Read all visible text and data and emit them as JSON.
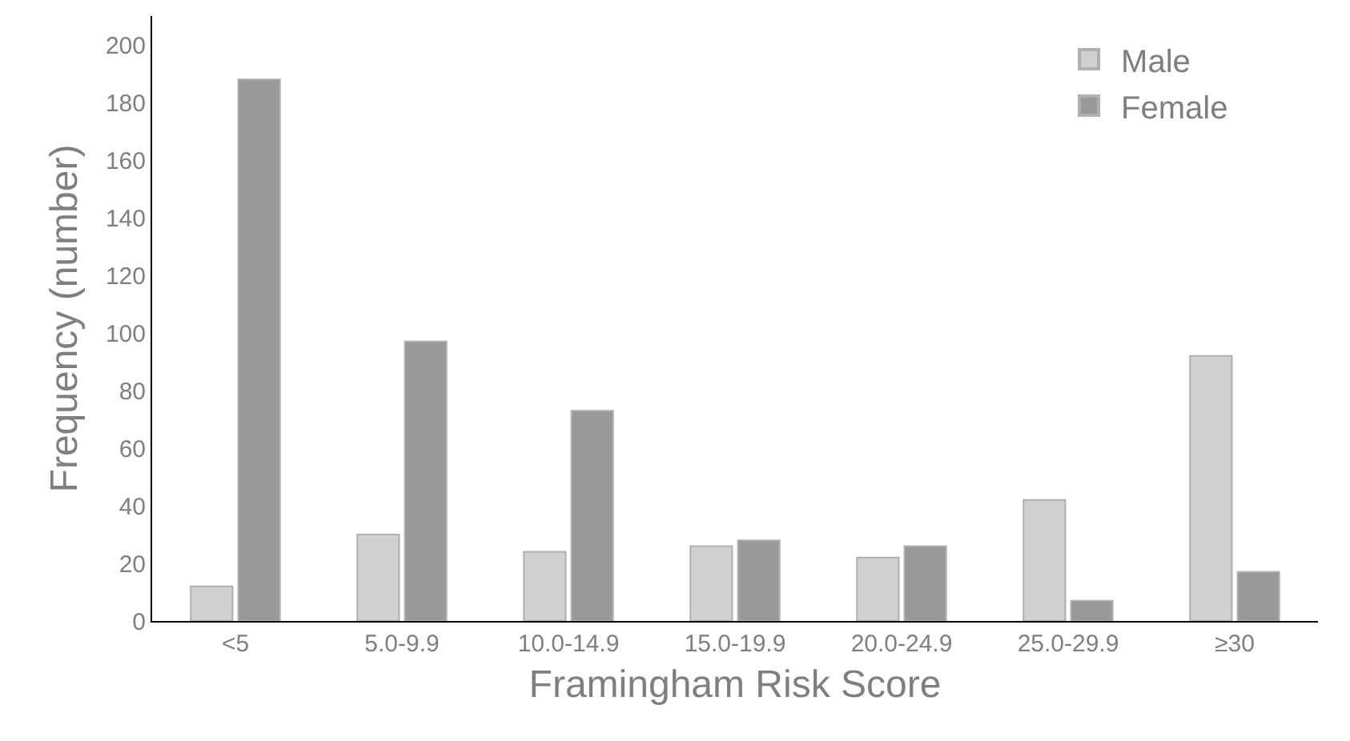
{
  "chart_data": {
    "type": "bar",
    "xlabel": "Framingham Risk Score",
    "ylabel": "Frequency (number)",
    "categories": [
      "<5",
      "5.0-9.9",
      "10.0-14.9",
      "15.0-19.9",
      "20.0-24.9",
      "25.0-29.9",
      "≥30"
    ],
    "series": [
      {
        "name": "Male",
        "color": "#d0d1d0",
        "values": [
          12,
          30,
          24,
          26,
          22,
          42,
          92
        ]
      },
      {
        "name": "Female",
        "color": "#999999",
        "values": [
          188,
          97,
          73,
          28,
          26,
          7,
          17
        ]
      }
    ],
    "ylim": [
      0,
      210
    ],
    "yticks": [
      0,
      20,
      40,
      60,
      80,
      100,
      120,
      140,
      160,
      180,
      200
    ],
    "legend": "top right"
  }
}
